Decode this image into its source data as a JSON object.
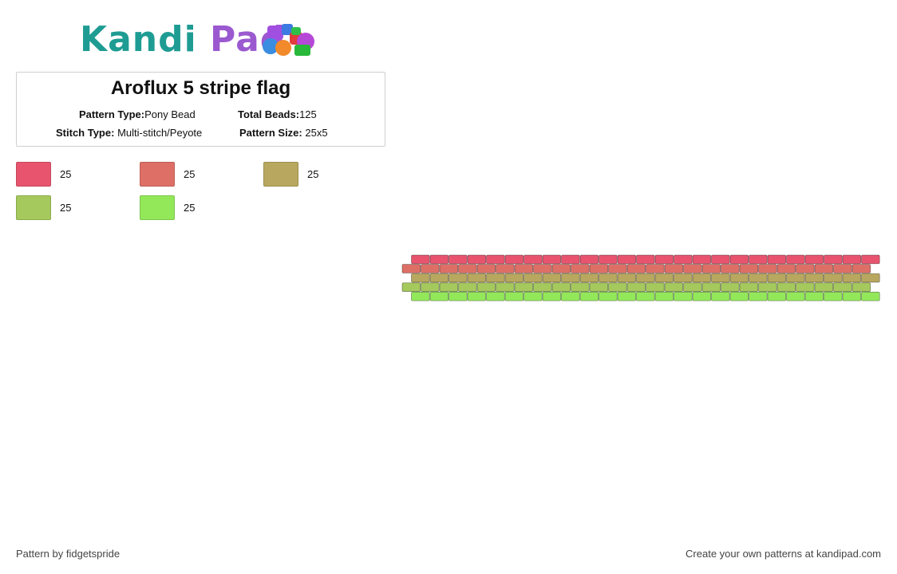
{
  "logo": {
    "word1": "Kandi",
    "word2": "Pad",
    "bead_icon": "beads-cluster-icon"
  },
  "pattern_info": {
    "title": "Aroflux 5 stripe flag",
    "pattern_type_label": "Pattern Type:",
    "pattern_type_value": "Pony Bead",
    "total_beads_label": "Total Beads:",
    "total_beads_value": "125",
    "stitch_type_label": "Stitch Type:",
    "stitch_type_value": "Multi-stitch/Peyote",
    "pattern_size_label": "Pattern Size:",
    "pattern_size_value": "25x5"
  },
  "legend": [
    {
      "color": "#e8546e",
      "count": "25"
    },
    {
      "color": "#de6f66",
      "count": "25"
    },
    {
      "color": "#b8a85f",
      "count": "25"
    },
    {
      "color": "#a5c95c",
      "count": "25"
    },
    {
      "color": "#93e85a",
      "count": "25"
    }
  ],
  "pattern": {
    "columns": 25,
    "rows": [
      {
        "color": "#e8546e",
        "offset": "right"
      },
      {
        "color": "#de6f66",
        "offset": "left"
      },
      {
        "color": "#b8a85f",
        "offset": "right"
      },
      {
        "color": "#a5c95c",
        "offset": "left"
      },
      {
        "color": "#93e85a",
        "offset": "right"
      }
    ]
  },
  "footer": {
    "credit": "Pattern by fidgetspride",
    "promo": "Create your own patterns at kandipad.com"
  }
}
